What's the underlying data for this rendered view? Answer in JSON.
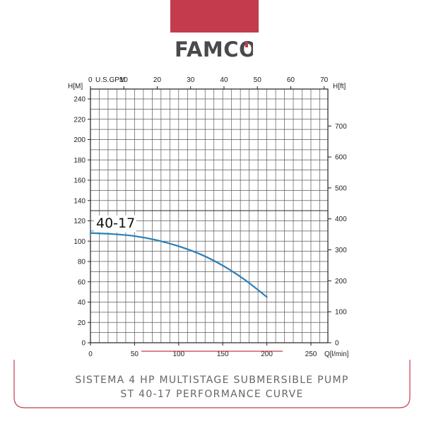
{
  "brand": {
    "name": "FAMCO",
    "band_color": "#c43b4e",
    "logo_color": "#4a4a4a",
    "logo_accent": "#c43b4e"
  },
  "caption": {
    "line1": "SISTEMA 4 HP MULTISTAGE SUBMERSIBLE PUMP",
    "line2": "ST 40-17 PERFORMANCE CURVE"
  },
  "chart_data": {
    "type": "line",
    "title": "",
    "xlabel": "Q[l/min]",
    "ylabel": "H[M]",
    "ylabel_right": "H[ft]",
    "xlabel_top": "U.S.GPM",
    "xlim": [
      0,
      270
    ],
    "ylim": [
      0,
      250
    ],
    "x_ticks": [
      0,
      50,
      100,
      150,
      200,
      250
    ],
    "y_ticks": [
      0,
      20,
      40,
      60,
      80,
      100,
      120,
      140,
      160,
      180,
      200,
      220,
      240
    ],
    "top_ticks": [
      0,
      10,
      20,
      30,
      40,
      50,
      60,
      70
    ],
    "right_ticks": [
      0,
      100,
      200,
      300,
      400,
      500,
      600,
      700
    ],
    "grid": true,
    "series": [
      {
        "name": "40-17",
        "color": "#2a7fb8",
        "x": [
          0,
          25,
          50,
          75,
          100,
          125,
          150,
          175,
          200
        ],
        "y": [
          108,
          107,
          105,
          101,
          95,
          87,
          76,
          62,
          45
        ]
      }
    ]
  }
}
